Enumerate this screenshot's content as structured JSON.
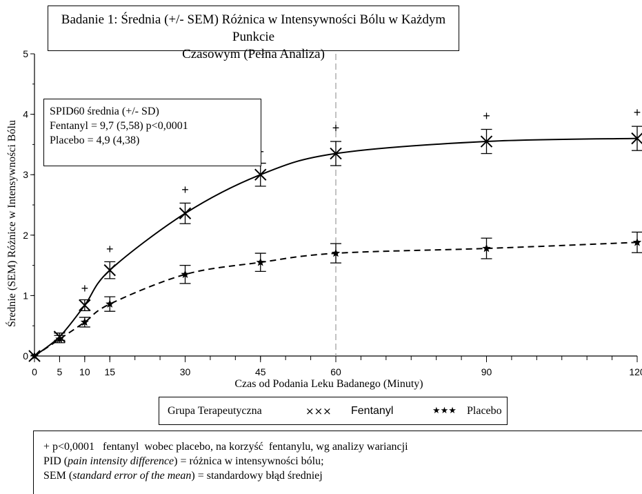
{
  "title": {
    "line1": "Badanie 1: Średnia (+/- SEM) Różnica w Intensywności Bólu w Każdym Punkcie",
    "line2": "Czasowym (Pełna Analiza)"
  },
  "stats_box": {
    "line1": "SPID60 średnia (+/- SD)",
    "line2": "Fentanyl = 9,7 (5,58) p<0,0001",
    "line3": "Placebo = 4,9 (4,38)"
  },
  "legend": {
    "group_label": "Grupa Terapeutyczna",
    "fentanyl_symbol": "×××",
    "fentanyl_label": "Fentanyl",
    "placebo_symbol": "★★★",
    "placebo_label": "Placebo"
  },
  "notes": {
    "line1_a": "+ p<0,0001   fentanyl  wobec placebo, na korzyść  fentanylu, wg analizy wariancji",
    "line2_a": "PID (",
    "line2_b": "pain intensity difference",
    "line2_c": ") = różnica w intensywności bólu;",
    "line3_a": "SEM (",
    "line3_b": "standard error of the mean",
    "line3_c": ") = standardowy błąd średniej"
  },
  "chart_data": {
    "type": "line",
    "xlabel": "Czas od Podania Leku Badanego (Minuty)",
    "ylabel": "Średnie (SEM) Różnice w Intensywności Bólu",
    "xlim": [
      0,
      120
    ],
    "ylim": [
      0,
      5
    ],
    "x_ticks": [
      0,
      5,
      10,
      15,
      30,
      45,
      60,
      90,
      120
    ],
    "y_ticks": [
      0,
      1,
      2,
      3,
      4,
      5
    ],
    "reference_line_x": 60,
    "x": [
      0,
      5,
      10,
      15,
      30,
      45,
      60,
      90,
      120
    ],
    "series": [
      {
        "name": "Fentanyl",
        "marker": "x",
        "line": "solid",
        "values": [
          0,
          0.32,
          0.84,
          1.42,
          2.36,
          3.0,
          3.35,
          3.55,
          3.6
        ],
        "sem": [
          0,
          0.06,
          0.09,
          0.14,
          0.17,
          0.19,
          0.2,
          0.2,
          0.2
        ]
      },
      {
        "name": "Placebo",
        "marker": "star",
        "line": "dashed",
        "values": [
          0,
          0.28,
          0.56,
          0.86,
          1.35,
          1.55,
          1.7,
          1.78,
          1.88
        ],
        "sem": [
          0,
          0.06,
          0.08,
          0.12,
          0.15,
          0.15,
          0.16,
          0.17,
          0.17
        ]
      }
    ],
    "significance_marker": "+",
    "significance_x": [
      10,
      15,
      30,
      45,
      60,
      90,
      120
    ],
    "significance_y": [
      1.12,
      1.77,
      2.75,
      3.38,
      3.77,
      3.97,
      4.03
    ],
    "colors": {
      "lines": "#000000",
      "reference_line": "#9a9a9a"
    }
  }
}
